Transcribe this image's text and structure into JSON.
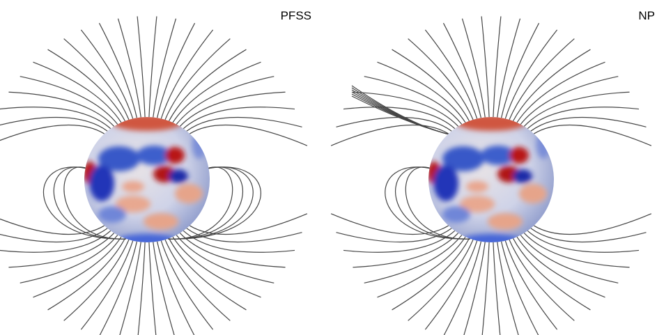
{
  "panels": [
    {
      "label": "PFSS"
    },
    {
      "label": "NP"
    }
  ]
}
